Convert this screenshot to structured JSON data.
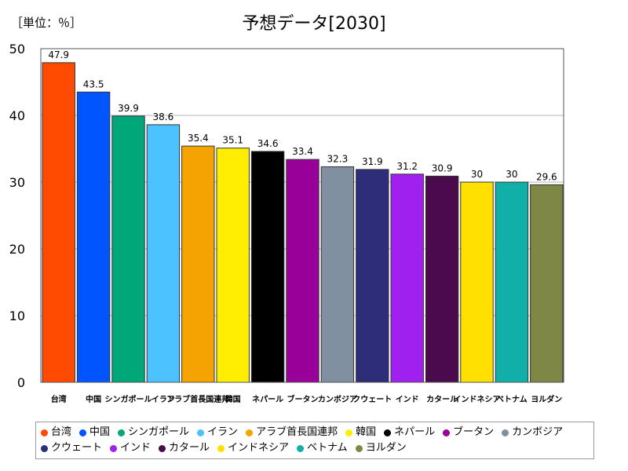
{
  "chart_data": {
    "type": "bar",
    "title": "予想データ[2030]",
    "unit_label": "［単位：％］",
    "xlabel": "",
    "ylabel": "",
    "ylim": [
      0,
      50
    ],
    "yticks": [
      0,
      10,
      20,
      30,
      40,
      50
    ],
    "grid": true,
    "legend_position": "bottom",
    "categories": [
      "台湾",
      "中国",
      "シンガポール",
      "イラン",
      "アラブ首長国連邦",
      "韓国",
      "ネパール",
      "ブータン",
      "カンボジア",
      "クウェート",
      "インド",
      "カタール",
      "インドネシア",
      "ベトナム",
      "ヨルダン"
    ],
    "axis_labels": [
      "台湾",
      "中国",
      "シンガポール",
      "イラン",
      "アラブ首長国連邦",
      "韓国",
      "ネパール",
      "ブータン",
      "カンボジア",
      "クウェート",
      "インド",
      "カタール",
      "インドネシア",
      "ベトナム",
      "ヨルダン"
    ],
    "values": [
      47.9,
      43.5,
      39.9,
      38.6,
      35.4,
      35.1,
      34.6,
      33.4,
      32.3,
      31.9,
      31.2,
      30.9,
      30,
      30,
      29.6
    ],
    "value_labels": [
      "47.9",
      "43.5",
      "39.9",
      "38.6",
      "35.4",
      "35.1",
      "34.6",
      "33.4",
      "32.3",
      "31.9",
      "31.2",
      "30.9",
      "30",
      "30",
      "29.6"
    ],
    "colors": [
      "#ff4a00",
      "#0055ff",
      "#00a878",
      "#4cc3ff",
      "#f5a300",
      "#ffee00",
      "#000000",
      "#990099",
      "#8090a0",
      "#2d2d7a",
      "#a020f0",
      "#4b0a4b",
      "#ffe000",
      "#10b0a8",
      "#7f8744"
    ]
  }
}
